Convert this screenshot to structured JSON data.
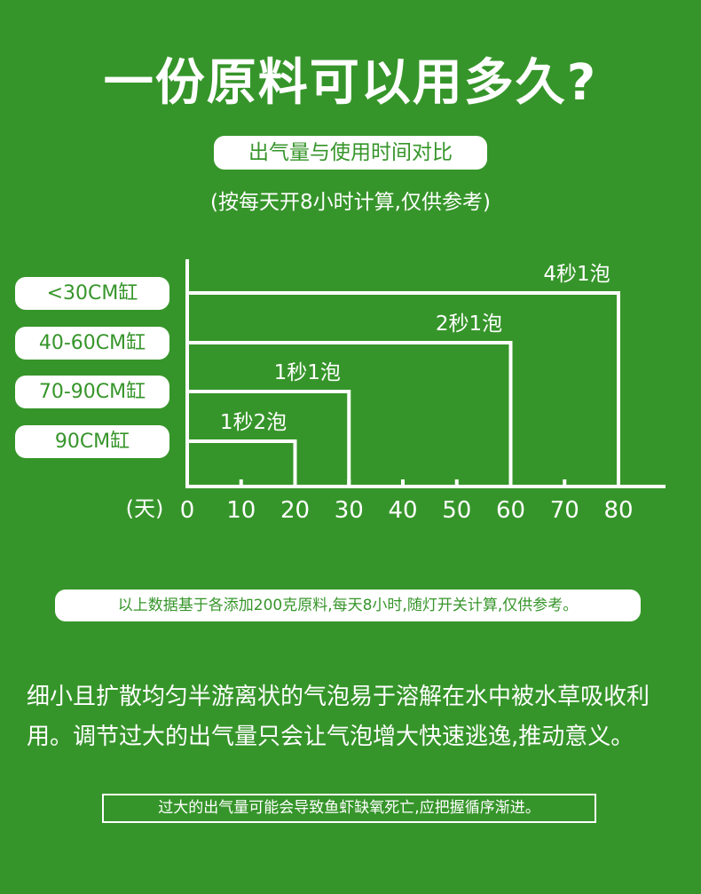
{
  "title": "一份原料可以用多久?",
  "subtitle": "出气量与使用时间对比",
  "note": "(按每天开8小时计算,仅供参考)",
  "chart_data": {
    "type": "bar",
    "orientation": "horizontal",
    "categories": [
      "<30CM缸",
      "40-60CM缸",
      "70-90CM缸",
      "90CM缸"
    ],
    "values": [
      80,
      60,
      30,
      20
    ],
    "data_labels": [
      "4秒1泡",
      "2秒1泡",
      "1秒1泡",
      "1秒2泡"
    ],
    "xlabel": "(天)",
    "xticks": [
      0,
      10,
      20,
      30,
      40,
      50,
      60,
      70,
      80
    ],
    "xlim": [
      0,
      88
    ],
    "grid": false,
    "colors": {
      "background": "#36952a",
      "line": "#ffffff",
      "label_box": "#ffffff",
      "label_text": "#36952a"
    }
  },
  "footnote": "以上数据基于各添加200克原料,每天8小时,随灯开关计算,仅供参考。",
  "paragraph": [
    "细小且扩散均匀半游离状的气泡易于溶解在水中被水草吸收利",
    "用。调节过大的出气量只会让气泡增大快速逃逸,推动意义。"
  ],
  "warning": "过大的出气量可能会导致鱼虾缺氧死亡,应把握循序渐进。"
}
